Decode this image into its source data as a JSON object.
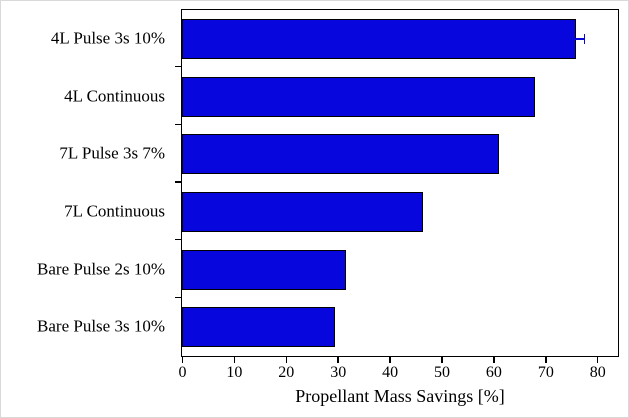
{
  "chart_data": {
    "type": "bar",
    "orientation": "horizontal",
    "title": "",
    "categories": [
      "4L Pulse 3s 10%",
      "4L Continuous",
      "7L Pulse 3s 7%",
      "7L Continuous",
      "Bare Pulse 2s 10%",
      "Bare Pulse 3s 10%"
    ],
    "values": [
      76,
      68,
      61,
      46.5,
      31.5,
      29.5
    ],
    "errors": [
      1.5,
      0,
      0,
      0,
      0,
      0
    ],
    "xlabel": "Propellant Mass Savings [%]",
    "ylabel": "",
    "xlim": [
      0,
      84
    ],
    "xticks": [
      0,
      10,
      20,
      30,
      40,
      50,
      60,
      70,
      80
    ],
    "grid": false,
    "legend_position": "none",
    "bar_color": "#0707dd",
    "bar_border_color": "#000000",
    "axis_color": "#000000"
  }
}
